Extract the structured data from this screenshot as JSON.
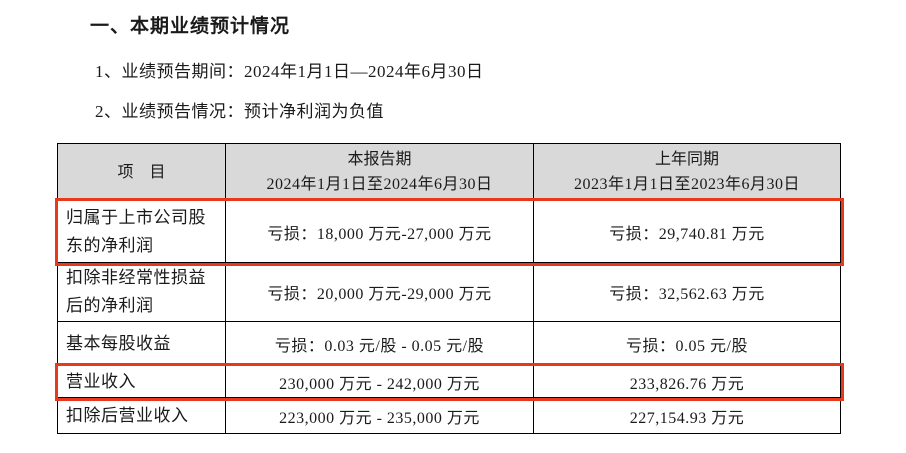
{
  "page": {
    "title": "一、本期业绩预计情况",
    "line1": "1、业绩预告期间：2024年1月1日—2024年6月30日",
    "line2": "2、业绩预告情况：预计净利润为负值"
  },
  "table": {
    "highlight_color": "#e8391c",
    "header_bg_color": "#d9d9d9",
    "header": {
      "col_item": "项　目",
      "col_current_title": "本报告期",
      "col_current_period": "2024年1月1日至2024年6月30日",
      "col_prior_title": "上年同期",
      "col_prior_period": "2023年1月1日至2023年6月30日"
    },
    "rows": [
      {
        "item": "归属于上市公司股东的净利润",
        "current": "亏损：18,000 万元-27,000 万元",
        "prior": "亏损：29,740.81 万元",
        "highlighted": true
      },
      {
        "item": "扣除非经常性损益后的净利润",
        "current": "亏损：20,000 万元-29,000 万元",
        "prior": "亏损：32,562.63 万元",
        "highlighted": false
      },
      {
        "item": "基本每股收益",
        "current": "亏损：0.03 元/股 - 0.05 元/股",
        "prior": "亏损：0.05 元/股",
        "highlighted": false
      },
      {
        "item": "营业收入",
        "current": "230,000 万元 - 242,000 万元",
        "prior": "233,826.76 万元",
        "highlighted": true
      },
      {
        "item": "扣除后营业收入",
        "current": "223,000 万元 - 235,000 万元",
        "prior": "227,154.93 万元",
        "highlighted": false
      }
    ]
  }
}
